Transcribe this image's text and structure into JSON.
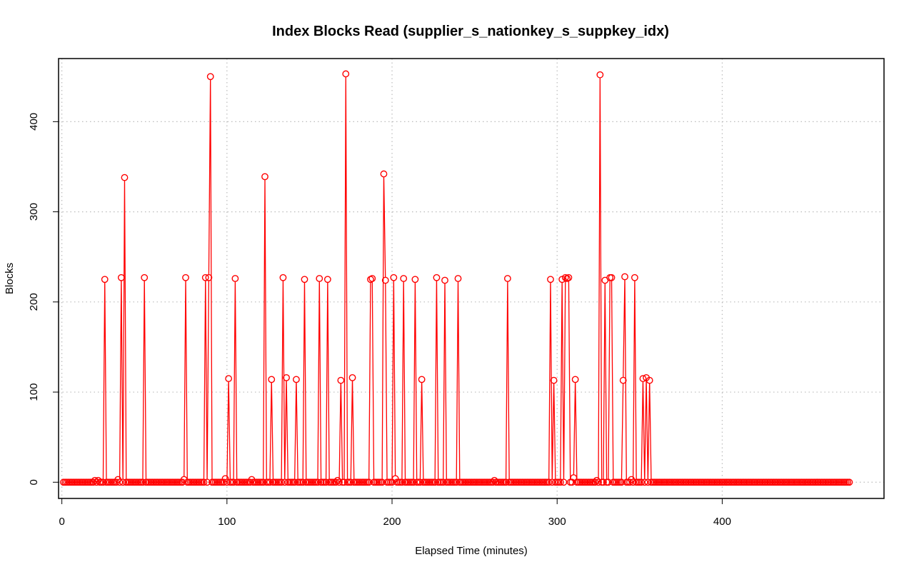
{
  "chart_data": {
    "type": "line",
    "title": "Index Blocks Read (supplier_s_nationkey_s_suppkey_idx)",
    "xlabel": "Elapsed Time (minutes)",
    "ylabel": "Blocks",
    "xlim": [
      -2,
      498
    ],
    "ylim": [
      -18,
      470
    ],
    "x_ticks": [
      0,
      100,
      200,
      300,
      400
    ],
    "y_ticks": [
      0,
      100,
      200,
      300,
      400
    ],
    "grid": true,
    "grid_style": "dotted",
    "series": [
      {
        "color": "#ff0000",
        "marker": "open-circle",
        "line": true,
        "x_start": 1,
        "x_end": 477,
        "baseline_value": 0,
        "spikes": [
          [
            26,
            225
          ],
          [
            36,
            227
          ],
          [
            38,
            338
          ],
          [
            50,
            227
          ],
          [
            75,
            227
          ],
          [
            87,
            227
          ],
          [
            89,
            227
          ],
          [
            90,
            450
          ],
          [
            101,
            115
          ],
          [
            105,
            226
          ],
          [
            123,
            339
          ],
          [
            127,
            114
          ],
          [
            134,
            227
          ],
          [
            136,
            116
          ],
          [
            142,
            114
          ],
          [
            147,
            225
          ],
          [
            156,
            226
          ],
          [
            161,
            225
          ],
          [
            169,
            113
          ],
          [
            172,
            453
          ],
          [
            176,
            116
          ],
          [
            187,
            225
          ],
          [
            188,
            226
          ],
          [
            195,
            342
          ],
          [
            196,
            224
          ],
          [
            201,
            227
          ],
          [
            207,
            226
          ],
          [
            214,
            225
          ],
          [
            218,
            114
          ],
          [
            227,
            227
          ],
          [
            232,
            224
          ],
          [
            240,
            226
          ],
          [
            270,
            226
          ],
          [
            296,
            225
          ],
          [
            298,
            113
          ],
          [
            303,
            225
          ],
          [
            305,
            227
          ],
          [
            306,
            226
          ],
          [
            307,
            227
          ],
          [
            311,
            114
          ],
          [
            326,
            452
          ],
          [
            329,
            224
          ],
          [
            332,
            227
          ],
          [
            333,
            227
          ],
          [
            340,
            113
          ],
          [
            341,
            228
          ],
          [
            347,
            227
          ],
          [
            352,
            115
          ],
          [
            354,
            116
          ],
          [
            356,
            113
          ]
        ],
        "small_values": [
          [
            20,
            2
          ],
          [
            22,
            2
          ],
          [
            34,
            3
          ],
          [
            74,
            3
          ],
          [
            99,
            4
          ],
          [
            115,
            3
          ],
          [
            167,
            2
          ],
          [
            202,
            4
          ],
          [
            262,
            2
          ],
          [
            310,
            5
          ],
          [
            324,
            2
          ],
          [
            345,
            3
          ]
        ]
      }
    ]
  }
}
